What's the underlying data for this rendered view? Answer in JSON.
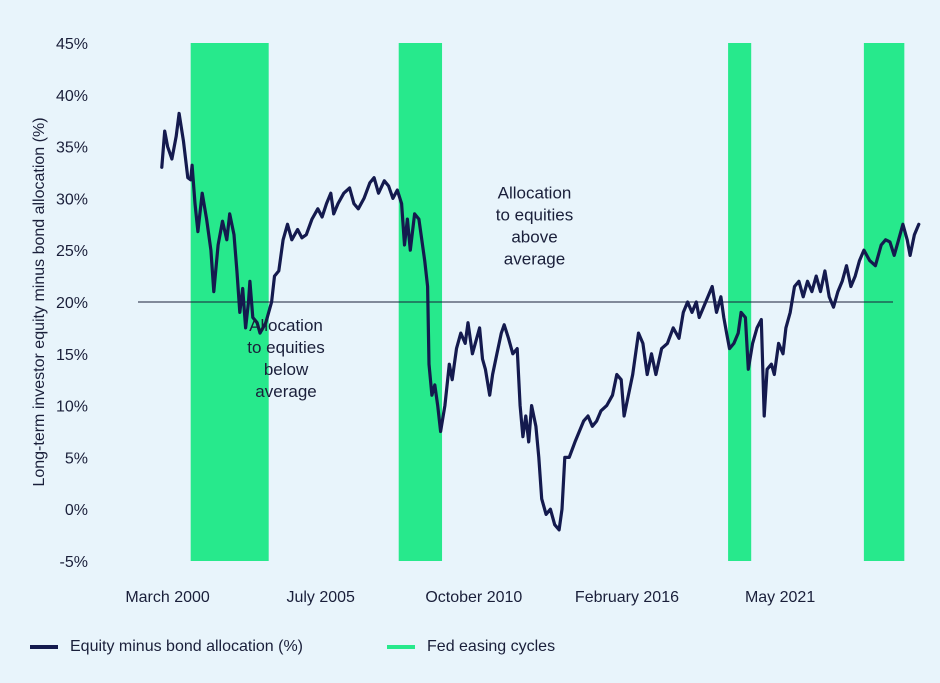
{
  "colors": {
    "line": "#141a4e",
    "band": "#27e98c",
    "refline": "#1a1f3a",
    "text": "#1a1f3a",
    "background": "#e8f4fb"
  },
  "chart_data": {
    "type": "line",
    "title": "",
    "ylabel": "Long-term investor equity minus bond allocation (%)",
    "xlabel": "",
    "ylim": [
      -5,
      45
    ],
    "yticks": [
      -5,
      0,
      5,
      10,
      15,
      20,
      25,
      30,
      35,
      40,
      45
    ],
    "ytick_labels": [
      "-5%",
      "0%",
      "5%",
      "10%",
      "15%",
      "20%",
      "25%",
      "30%",
      "35%",
      "40%",
      "45%"
    ],
    "xlim": [
      1998.0,
      2026.0
    ],
    "xtick_positions": [
      2000.2,
      2005.5,
      2010.8,
      2016.1,
      2021.4
    ],
    "xtick_labels": [
      "March 2000",
      "July 2005",
      "October 2010",
      "February 2016",
      "May 2021"
    ],
    "reference_line": {
      "y": 20
    },
    "shaded_regions": [
      {
        "start": 2001.0,
        "end": 2003.7
      },
      {
        "start": 2008.2,
        "end": 2009.7
      },
      {
        "start": 2019.6,
        "end": 2020.4
      },
      {
        "start": 2024.3,
        "end": 2025.7
      }
    ],
    "annotations": [
      {
        "lines": [
          "Allocation",
          "to equities",
          "above",
          "average"
        ],
        "x": 2012.9,
        "y": 30
      },
      {
        "lines": [
          "Allocation",
          "to equities",
          "below",
          "average"
        ],
        "x": 2004.3,
        "y": 17.2
      }
    ],
    "series": [
      {
        "name": "Equity minus bond allocation (%)",
        "points": [
          [
            2000.0,
            33.0
          ],
          [
            2000.1,
            36.5
          ],
          [
            2000.2,
            35.0
          ],
          [
            2000.35,
            33.8
          ],
          [
            2000.5,
            36.0
          ],
          [
            2000.6,
            38.2
          ],
          [
            2000.75,
            35.5
          ],
          [
            2000.9,
            32.0
          ],
          [
            2001.0,
            31.8
          ],
          [
            2001.05,
            33.2
          ],
          [
            2001.15,
            29.5
          ],
          [
            2001.25,
            26.8
          ],
          [
            2001.4,
            30.5
          ],
          [
            2001.55,
            28.0
          ],
          [
            2001.7,
            25.0
          ],
          [
            2001.8,
            21.0
          ],
          [
            2001.95,
            25.5
          ],
          [
            2002.1,
            27.8
          ],
          [
            2002.25,
            26.0
          ],
          [
            2002.35,
            28.5
          ],
          [
            2002.5,
            26.5
          ],
          [
            2002.6,
            23.0
          ],
          [
            2002.7,
            19.0
          ],
          [
            2002.8,
            21.3
          ],
          [
            2002.9,
            17.5
          ],
          [
            2003.0,
            20.0
          ],
          [
            2003.05,
            22.0
          ],
          [
            2003.15,
            18.5
          ],
          [
            2003.3,
            18.0
          ],
          [
            2003.4,
            17.0
          ],
          [
            2003.6,
            18.0
          ],
          [
            2003.8,
            20.0
          ],
          [
            2003.9,
            22.5
          ],
          [
            2004.05,
            23.0
          ],
          [
            2004.2,
            26.0
          ],
          [
            2004.35,
            27.5
          ],
          [
            2004.5,
            26.0
          ],
          [
            2004.7,
            27.0
          ],
          [
            2004.85,
            26.2
          ],
          [
            2005.0,
            26.5
          ],
          [
            2005.2,
            28.0
          ],
          [
            2005.4,
            29.0
          ],
          [
            2005.55,
            28.2
          ],
          [
            2005.7,
            29.5
          ],
          [
            2005.85,
            30.5
          ],
          [
            2005.95,
            28.5
          ],
          [
            2006.1,
            29.5
          ],
          [
            2006.3,
            30.5
          ],
          [
            2006.5,
            31.0
          ],
          [
            2006.65,
            29.5
          ],
          [
            2006.8,
            29.0
          ],
          [
            2007.0,
            30.0
          ],
          [
            2007.2,
            31.5
          ],
          [
            2007.35,
            32.0
          ],
          [
            2007.5,
            30.5
          ],
          [
            2007.7,
            31.7
          ],
          [
            2007.85,
            31.2
          ],
          [
            2008.0,
            30.0
          ],
          [
            2008.15,
            30.8
          ],
          [
            2008.3,
            29.5
          ],
          [
            2008.4,
            25.5
          ],
          [
            2008.5,
            28.0
          ],
          [
            2008.6,
            25.0
          ],
          [
            2008.75,
            28.5
          ],
          [
            2008.9,
            28.0
          ],
          [
            2009.0,
            26.0
          ],
          [
            2009.1,
            24.0
          ],
          [
            2009.2,
            21.5
          ],
          [
            2009.25,
            14.0
          ],
          [
            2009.35,
            11.0
          ],
          [
            2009.45,
            12.0
          ],
          [
            2009.55,
            10.0
          ],
          [
            2009.65,
            7.5
          ],
          [
            2009.8,
            10.0
          ],
          [
            2009.95,
            14.0
          ],
          [
            2010.05,
            12.5
          ],
          [
            2010.2,
            15.5
          ],
          [
            2010.35,
            17.0
          ],
          [
            2010.5,
            16.0
          ],
          [
            2010.6,
            18.0
          ],
          [
            2010.75,
            15.0
          ],
          [
            2010.9,
            16.5
          ],
          [
            2011.0,
            17.5
          ],
          [
            2011.1,
            14.5
          ],
          [
            2011.2,
            13.5
          ],
          [
            2011.35,
            11.0
          ],
          [
            2011.45,
            13.0
          ],
          [
            2011.6,
            15.0
          ],
          [
            2011.75,
            17.0
          ],
          [
            2011.85,
            17.8
          ],
          [
            2012.0,
            16.5
          ],
          [
            2012.15,
            15.0
          ],
          [
            2012.3,
            15.5
          ],
          [
            2012.4,
            10.0
          ],
          [
            2012.5,
            7.0
          ],
          [
            2012.6,
            9.0
          ],
          [
            2012.7,
            6.5
          ],
          [
            2012.8,
            10.0
          ],
          [
            2012.95,
            8.0
          ],
          [
            2013.05,
            5.0
          ],
          [
            2013.15,
            1.0
          ],
          [
            2013.3,
            -0.5
          ],
          [
            2013.45,
            0.0
          ],
          [
            2013.6,
            -1.5
          ],
          [
            2013.75,
            -2.0
          ],
          [
            2013.85,
            0.0
          ],
          [
            2013.95,
            5.0
          ],
          [
            2014.1,
            5.0
          ],
          [
            2014.3,
            6.5
          ],
          [
            2014.45,
            7.5
          ],
          [
            2014.6,
            8.5
          ],
          [
            2014.75,
            9.0
          ],
          [
            2014.9,
            8.0
          ],
          [
            2015.05,
            8.5
          ],
          [
            2015.2,
            9.5
          ],
          [
            2015.4,
            10.0
          ],
          [
            2015.6,
            11.0
          ],
          [
            2015.75,
            13.0
          ],
          [
            2015.9,
            12.5
          ],
          [
            2016.0,
            9.0
          ],
          [
            2016.15,
            11.0
          ],
          [
            2016.3,
            13.0
          ],
          [
            2016.5,
            17.0
          ],
          [
            2016.65,
            16.0
          ],
          [
            2016.8,
            13.0
          ],
          [
            2016.95,
            15.0
          ],
          [
            2017.1,
            13.0
          ],
          [
            2017.3,
            15.5
          ],
          [
            2017.5,
            16.0
          ],
          [
            2017.7,
            17.5
          ],
          [
            2017.9,
            16.5
          ],
          [
            2018.05,
            19.0
          ],
          [
            2018.2,
            20.0
          ],
          [
            2018.35,
            19.0
          ],
          [
            2018.5,
            20.0
          ],
          [
            2018.6,
            18.5
          ],
          [
            2018.75,
            19.5
          ],
          [
            2018.9,
            20.5
          ],
          [
            2019.05,
            21.5
          ],
          [
            2019.2,
            19.0
          ],
          [
            2019.35,
            20.5
          ],
          [
            2019.45,
            18.5
          ],
          [
            2019.55,
            17.0
          ],
          [
            2019.65,
            15.5
          ],
          [
            2019.8,
            16.0
          ],
          [
            2019.95,
            17.0
          ],
          [
            2020.05,
            19.0
          ],
          [
            2020.2,
            18.5
          ],
          [
            2020.3,
            13.5
          ],
          [
            2020.45,
            16.0
          ],
          [
            2020.6,
            17.5
          ],
          [
            2020.75,
            18.3
          ],
          [
            2020.85,
            9.0
          ],
          [
            2020.95,
            13.5
          ],
          [
            2021.1,
            14.0
          ],
          [
            2021.2,
            13.0
          ],
          [
            2021.35,
            16.0
          ],
          [
            2021.5,
            15.0
          ],
          [
            2021.6,
            17.5
          ],
          [
            2021.75,
            19.0
          ],
          [
            2021.9,
            21.5
          ],
          [
            2022.05,
            22.0
          ],
          [
            2022.2,
            20.5
          ],
          [
            2022.35,
            22.0
          ],
          [
            2022.5,
            21.0
          ],
          [
            2022.65,
            22.5
          ],
          [
            2022.8,
            21.0
          ],
          [
            2022.95,
            23.0
          ],
          [
            2023.1,
            20.5
          ],
          [
            2023.25,
            19.5
          ],
          [
            2023.4,
            21.0
          ],
          [
            2023.55,
            22.0
          ],
          [
            2023.7,
            23.5
          ],
          [
            2023.85,
            21.5
          ],
          [
            2024.0,
            22.5
          ],
          [
            2024.15,
            24.0
          ],
          [
            2024.3,
            25.0
          ],
          [
            2024.5,
            24.0
          ],
          [
            2024.7,
            23.5
          ],
          [
            2024.9,
            25.5
          ],
          [
            2025.05,
            26.0
          ],
          [
            2025.2,
            25.8
          ],
          [
            2025.35,
            24.5
          ],
          [
            2025.5,
            26.0
          ],
          [
            2025.65,
            27.5
          ],
          [
            2025.8,
            26.0
          ],
          [
            2025.9,
            24.5
          ],
          [
            2026.05,
            26.5
          ],
          [
            2026.2,
            27.5
          ]
        ]
      }
    ],
    "legend": {
      "placement": "bottom",
      "items": [
        {
          "label": "Equity minus bond allocation (%)",
          "kind": "line"
        },
        {
          "label": "Fed easing cycles",
          "kind": "band"
        }
      ]
    }
  }
}
